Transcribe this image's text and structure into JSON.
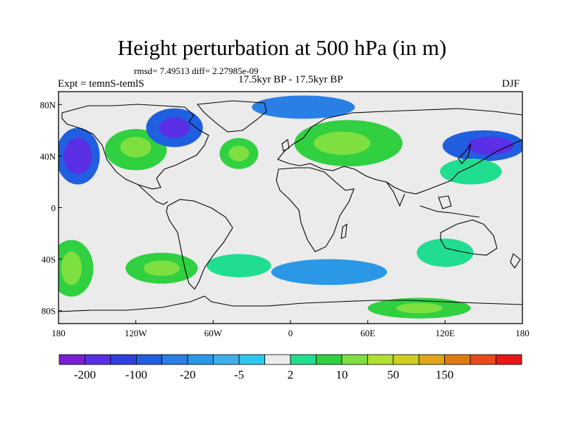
{
  "title": "Height perturbation at 500 hPa (in m)",
  "stats": "rmsd= 7.49513 diff= 2.27985e-09",
  "experiment": "Expt = temnS-temlS",
  "period": "17.5kyr BP - 17.5kyr BP",
  "season": "DJF",
  "map": {
    "projection": "cylindrical-equidistant",
    "lon_range": [
      -180,
      180
    ],
    "lat_range": [
      -90,
      90
    ],
    "x_ticks": [
      {
        "lon": -180,
        "label": "180"
      },
      {
        "lon": -120,
        "label": "120W"
      },
      {
        "lon": -60,
        "label": "60W"
      },
      {
        "lon": 0,
        "label": "0"
      },
      {
        "lon": 60,
        "label": "60E"
      },
      {
        "lon": 120,
        "label": "120E"
      },
      {
        "lon": 180,
        "label": "180"
      }
    ],
    "y_ticks": [
      {
        "lat": 80,
        "label": "80N"
      },
      {
        "lat": 40,
        "label": "40N"
      },
      {
        "lat": 0,
        "label": "0"
      },
      {
        "lat": -40,
        "label": "40S"
      },
      {
        "lat": -80,
        "label": "80S"
      }
    ],
    "fields": [
      {
        "lon": -165,
        "lat": 40,
        "rx": 17,
        "ry": 22,
        "level": 3
      },
      {
        "lon": -165,
        "lat": 40,
        "rx": 11,
        "ry": 14,
        "level": 1
      },
      {
        "lon": -120,
        "lat": 45,
        "rx": 24,
        "ry": 16,
        "level": 10
      },
      {
        "lon": -120,
        "lat": 47,
        "rx": 12,
        "ry": 8,
        "level": 11
      },
      {
        "lon": -90,
        "lat": 62,
        "rx": 22,
        "ry": 15,
        "level": 3
      },
      {
        "lon": -90,
        "lat": 62,
        "rx": 12,
        "ry": 8,
        "level": 1
      },
      {
        "lon": -40,
        "lat": 42,
        "rx": 15,
        "ry": 12,
        "level": 10
      },
      {
        "lon": -40,
        "lat": 42,
        "rx": 8,
        "ry": 6,
        "level": 11
      },
      {
        "lon": 45,
        "lat": 50,
        "rx": 42,
        "ry": 18,
        "level": 10
      },
      {
        "lon": 40,
        "lat": 50,
        "rx": 22,
        "ry": 9,
        "level": 11
      },
      {
        "lon": 10,
        "lat": 78,
        "rx": 40,
        "ry": 9,
        "level": 4
      },
      {
        "lon": 150,
        "lat": 48,
        "rx": 32,
        "ry": 12,
        "level": 3
      },
      {
        "lon": 155,
        "lat": 48,
        "rx": 18,
        "ry": 7,
        "level": 1
      },
      {
        "lon": 140,
        "lat": 28,
        "rx": 24,
        "ry": 10,
        "level": 9
      },
      {
        "lon": -170,
        "lat": -47,
        "rx": 17,
        "ry": 22,
        "level": 10
      },
      {
        "lon": -170,
        "lat": -47,
        "rx": 8,
        "ry": 13,
        "level": 11
      },
      {
        "lon": -100,
        "lat": -47,
        "rx": 28,
        "ry": 12,
        "level": 10
      },
      {
        "lon": -100,
        "lat": -47,
        "rx": 14,
        "ry": 6,
        "level": 11
      },
      {
        "lon": -40,
        "lat": -45,
        "rx": 25,
        "ry": 9,
        "level": 9
      },
      {
        "lon": 30,
        "lat": -50,
        "rx": 45,
        "ry": 10,
        "level": 5
      },
      {
        "lon": 120,
        "lat": -35,
        "rx": 22,
        "ry": 11,
        "level": 9
      },
      {
        "lon": 100,
        "lat": -78,
        "rx": 40,
        "ry": 8,
        "level": 10
      },
      {
        "lon": 100,
        "lat": -78,
        "rx": 18,
        "ry": 4,
        "level": 11
      }
    ]
  },
  "colorbar": {
    "colors": [
      "#7a1fd6",
      "#5a2fe6",
      "#3040e0",
      "#1f5fe0",
      "#2a7fe6",
      "#2a98e6",
      "#3fb0ea",
      "#2ec8ee",
      "#ebebeb",
      "#20dd90",
      "#30d040",
      "#7de040",
      "#b0e030",
      "#d0cf20",
      "#e0a418",
      "#e07a10",
      "#ea4a1a",
      "#e81818"
    ],
    "labels": [
      "-200",
      "-100",
      "-20",
      "-5",
      "2",
      "10",
      "50",
      "150"
    ]
  }
}
